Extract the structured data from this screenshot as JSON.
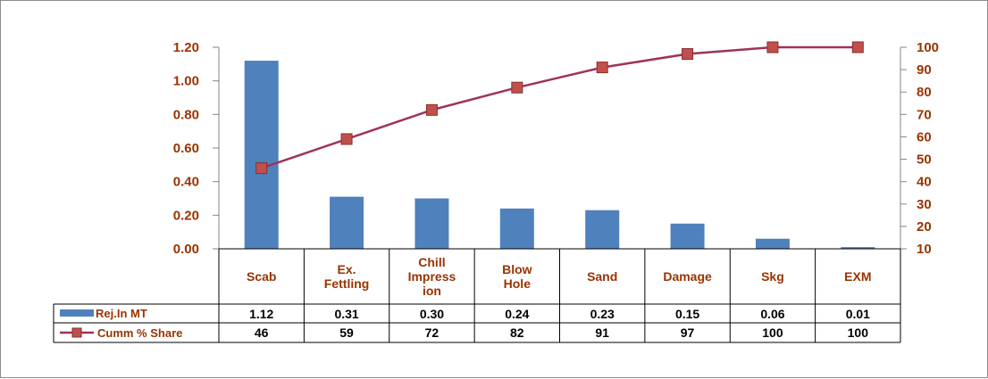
{
  "chart_data": {
    "type": "bar",
    "categories": [
      "Scab",
      "Ex. Fettling",
      "Chill Impression",
      "Blow Hole",
      "Sand",
      "Damage",
      "Skg",
      "EXM"
    ],
    "category_lines": [
      [
        "Scab"
      ],
      [
        "Ex.",
        "Fettling"
      ],
      [
        "Chill",
        "Impress",
        "ion"
      ],
      [
        "Blow",
        "Hole"
      ],
      [
        "Sand"
      ],
      [
        "Damage"
      ],
      [
        "Skg"
      ],
      [
        "EXM"
      ]
    ],
    "series": [
      {
        "name": "Rej.In MT",
        "type": "bar",
        "axis": "left",
        "color": "#4f81bd",
        "values": [
          1.12,
          0.31,
          0.3,
          0.24,
          0.23,
          0.15,
          0.06,
          0.01
        ],
        "labels": [
          "1.12",
          "0.31",
          "0.30",
          "0.24",
          "0.23",
          "0.15",
          "0.06",
          "0.01"
        ]
      },
      {
        "name": "Cumm % Share",
        "type": "line",
        "axis": "right",
        "color": "#a0325a",
        "marker_color": "#c0504d",
        "values": [
          46,
          59,
          72,
          82,
          91,
          97,
          100,
          100
        ],
        "labels": [
          "46",
          "59",
          "72",
          "82",
          "91",
          "97",
          "100",
          "100"
        ]
      }
    ],
    "y_left": {
      "ylim": [
        0,
        1.2
      ],
      "ticks": [
        0,
        0.2,
        0.4,
        0.6,
        0.8,
        1.0,
        1.2
      ],
      "tick_labels": [
        "0.00",
        "0.20",
        "0.40",
        "0.60",
        "0.80",
        "1.00",
        "1.20"
      ]
    },
    "y_right": {
      "ylim": [
        10,
        100
      ],
      "ticks": [
        10,
        20,
        30,
        40,
        50,
        60,
        70,
        80,
        90,
        100
      ],
      "tick_labels": [
        "10",
        "20",
        "30",
        "40",
        "50",
        "60",
        "70",
        "80",
        "90",
        "100"
      ]
    },
    "grid": false,
    "legend": "data-table",
    "title": "",
    "xlabel": "",
    "ylabel": ""
  }
}
